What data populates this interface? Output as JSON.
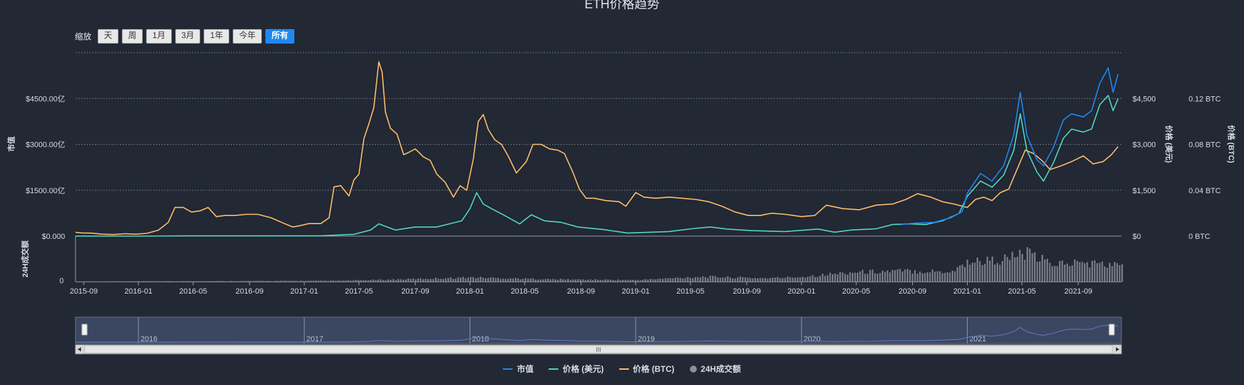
{
  "title": "ETH价格趋势",
  "zoom": {
    "label": "缩放",
    "buttons": [
      "天",
      "周",
      "1月",
      "3月",
      "1年",
      "今年",
      "所有"
    ],
    "active": "所有"
  },
  "legend": [
    {
      "name": "市值",
      "color": "#1e88f0",
      "kind": "line"
    },
    {
      "name": "价格 (美元)",
      "color": "#4fd8c4",
      "kind": "line"
    },
    {
      "name": "价格 (BTC)",
      "color": "#ffbe6a",
      "kind": "line"
    },
    {
      "name": "24H成交额",
      "color": "#8a8f98",
      "kind": "dot"
    }
  ],
  "navigator": {
    "years": [
      "2016",
      "2017",
      "2018",
      "2019",
      "2020",
      "2021"
    ],
    "scroll_label": "III"
  },
  "chart_data": {
    "type": "line",
    "title": "ETH价格趋势",
    "x_range": [
      2015.62,
      2021.93
    ],
    "x_tick_labels": [
      "2015-09",
      "2016-01",
      "2016-05",
      "2016-09",
      "2017-01",
      "2017-05",
      "2017-09",
      "2018-01",
      "2018-05",
      "2018-09",
      "2019-01",
      "2019-05",
      "2019-09",
      "2020-01",
      "2020-05",
      "2020-09",
      "2021-01",
      "2021-05",
      "2021-09"
    ],
    "x_tick_values": [
      2015.67,
      2016.0,
      2016.33,
      2016.67,
      2017.0,
      2017.33,
      2017.67,
      2018.0,
      2018.33,
      2018.67,
      2019.0,
      2019.33,
      2019.67,
      2020.0,
      2020.33,
      2020.67,
      2021.0,
      2021.33,
      2021.67
    ],
    "axes": {
      "market_cap": {
        "label": "市值",
        "ylim": [
          0,
          6000
        ],
        "ticks": [
          0,
          1500,
          3000,
          4500
        ],
        "tick_labels": [
          "$0.000",
          "$1500.00亿",
          "$3000.00亿",
          "$4500.00亿"
        ]
      },
      "price_usd": {
        "label": "价格 (美元)",
        "ylim": [
          0,
          6000
        ],
        "ticks": [
          0,
          1500,
          3000,
          4500
        ],
        "tick_labels": [
          "$0",
          "$1,500",
          "$3,000",
          "$4,500"
        ]
      },
      "price_btc": {
        "label": "价格 (BTC)",
        "ylim": [
          0,
          0.16
        ],
        "ticks": [
          0,
          0.04,
          0.08,
          0.12
        ],
        "tick_labels": [
          "0 BTC",
          "0.04 BTC",
          "0.08 BTC",
          "0.12 BTC"
        ]
      },
      "volume": {
        "label": "24H成交额",
        "ticks": [
          0
        ],
        "tick_labels": [
          "0",
          "$0.000"
        ],
        "ymax": 100
      }
    },
    "series": [
      {
        "name": "价格 (BTC)",
        "axis": "price_btc",
        "color": "#ffbe6a",
        "points": [
          [
            2015.62,
            0.0033
          ],
          [
            2015.66,
            0.0028
          ],
          [
            2015.72,
            0.0026
          ],
          [
            2015.78,
            0.0017
          ],
          [
            2015.85,
            0.0014
          ],
          [
            2015.92,
            0.0021
          ],
          [
            2015.98,
            0.0017
          ],
          [
            2016.05,
            0.0024
          ],
          [
            2016.12,
            0.0052
          ],
          [
            2016.18,
            0.012
          ],
          [
            2016.22,
            0.025
          ],
          [
            2016.27,
            0.025
          ],
          [
            2016.32,
            0.021
          ],
          [
            2016.37,
            0.022
          ],
          [
            2016.42,
            0.025
          ],
          [
            2016.47,
            0.017
          ],
          [
            2016.52,
            0.018
          ],
          [
            2016.58,
            0.018
          ],
          [
            2016.65,
            0.019
          ],
          [
            2016.72,
            0.019
          ],
          [
            2016.8,
            0.016
          ],
          [
            2016.88,
            0.011
          ],
          [
            2016.93,
            0.008
          ],
          [
            2016.97,
            0.009
          ],
          [
            2017.03,
            0.011
          ],
          [
            2017.1,
            0.011
          ],
          [
            2017.15,
            0.016
          ],
          [
            2017.18,
            0.043
          ],
          [
            2017.22,
            0.044
          ],
          [
            2017.27,
            0.035
          ],
          [
            2017.3,
            0.049
          ],
          [
            2017.33,
            0.054
          ],
          [
            2017.36,
            0.085
          ],
          [
            2017.39,
            0.098
          ],
          [
            2017.42,
            0.112
          ],
          [
            2017.45,
            0.152
          ],
          [
            2017.47,
            0.143
          ],
          [
            2017.49,
            0.108
          ],
          [
            2017.52,
            0.094
          ],
          [
            2017.56,
            0.089
          ],
          [
            2017.6,
            0.071
          ],
          [
            2017.63,
            0.073
          ],
          [
            2017.67,
            0.076
          ],
          [
            2017.72,
            0.069
          ],
          [
            2017.76,
            0.066
          ],
          [
            2017.8,
            0.054
          ],
          [
            2017.85,
            0.047
          ],
          [
            2017.9,
            0.034
          ],
          [
            2017.94,
            0.044
          ],
          [
            2017.98,
            0.04
          ],
          [
            2018.02,
            0.067
          ],
          [
            2018.05,
            0.1
          ],
          [
            2018.08,
            0.106
          ],
          [
            2018.11,
            0.093
          ],
          [
            2018.15,
            0.084
          ],
          [
            2018.19,
            0.08
          ],
          [
            2018.23,
            0.07
          ],
          [
            2018.28,
            0.055
          ],
          [
            2018.34,
            0.065
          ],
          [
            2018.38,
            0.08
          ],
          [
            2018.43,
            0.08
          ],
          [
            2018.48,
            0.076
          ],
          [
            2018.53,
            0.075
          ],
          [
            2018.57,
            0.072
          ],
          [
            2018.62,
            0.056
          ],
          [
            2018.66,
            0.041
          ],
          [
            2018.7,
            0.033
          ],
          [
            2018.75,
            0.033
          ],
          [
            2018.82,
            0.031
          ],
          [
            2018.9,
            0.03
          ],
          [
            2018.94,
            0.026
          ],
          [
            2019.0,
            0.038
          ],
          [
            2019.05,
            0.034
          ],
          [
            2019.12,
            0.033
          ],
          [
            2019.2,
            0.034
          ],
          [
            2019.28,
            0.033
          ],
          [
            2019.36,
            0.032
          ],
          [
            2019.44,
            0.03
          ],
          [
            2019.52,
            0.026
          ],
          [
            2019.6,
            0.021
          ],
          [
            2019.68,
            0.018
          ],
          [
            2019.75,
            0.018
          ],
          [
            2019.82,
            0.02
          ],
          [
            2019.9,
            0.019
          ],
          [
            2020.0,
            0.017
          ],
          [
            2020.08,
            0.018
          ],
          [
            2020.15,
            0.027
          ],
          [
            2020.25,
            0.024
          ],
          [
            2020.35,
            0.023
          ],
          [
            2020.45,
            0.027
          ],
          [
            2020.55,
            0.028
          ],
          [
            2020.63,
            0.032
          ],
          [
            2020.7,
            0.037
          ],
          [
            2020.78,
            0.034
          ],
          [
            2020.85,
            0.03
          ],
          [
            2020.92,
            0.028
          ],
          [
            2021.0,
            0.025
          ],
          [
            2021.05,
            0.032
          ],
          [
            2021.1,
            0.034
          ],
          [
            2021.15,
            0.031
          ],
          [
            2021.2,
            0.038
          ],
          [
            2021.25,
            0.041
          ],
          [
            2021.3,
            0.058
          ],
          [
            2021.35,
            0.075
          ],
          [
            2021.4,
            0.072
          ],
          [
            2021.45,
            0.066
          ],
          [
            2021.5,
            0.058
          ],
          [
            2021.58,
            0.062
          ],
          [
            2021.63,
            0.065
          ],
          [
            2021.7,
            0.07
          ],
          [
            2021.76,
            0.063
          ],
          [
            2021.82,
            0.065
          ],
          [
            2021.87,
            0.071
          ],
          [
            2021.91,
            0.078
          ]
        ]
      },
      {
        "name": "价格 (美元)",
        "axis": "price_usd",
        "color": "#4fd8c4",
        "points": [
          [
            2015.62,
            2
          ],
          [
            2016.0,
            1
          ],
          [
            2016.3,
            11
          ],
          [
            2016.6,
            12
          ],
          [
            2016.9,
            8
          ],
          [
            2017.1,
            12
          ],
          [
            2017.3,
            60
          ],
          [
            2017.4,
            200
          ],
          [
            2017.45,
            400
          ],
          [
            2017.55,
            200
          ],
          [
            2017.67,
            300
          ],
          [
            2017.8,
            300
          ],
          [
            2017.95,
            500
          ],
          [
            2018.0,
            900
          ],
          [
            2018.04,
            1420
          ],
          [
            2018.08,
            1050
          ],
          [
            2018.13,
            900
          ],
          [
            2018.2,
            700
          ],
          [
            2018.3,
            400
          ],
          [
            2018.37,
            700
          ],
          [
            2018.45,
            500
          ],
          [
            2018.55,
            450
          ],
          [
            2018.65,
            300
          ],
          [
            2018.8,
            220
          ],
          [
            2018.95,
            100
          ],
          [
            2019.05,
            120
          ],
          [
            2019.2,
            150
          ],
          [
            2019.35,
            250
          ],
          [
            2019.45,
            300
          ],
          [
            2019.55,
            230
          ],
          [
            2019.7,
            180
          ],
          [
            2019.9,
            150
          ],
          [
            2020.1,
            230
          ],
          [
            2020.2,
            130
          ],
          [
            2020.3,
            200
          ],
          [
            2020.45,
            240
          ],
          [
            2020.55,
            380
          ],
          [
            2020.65,
            400
          ],
          [
            2020.75,
            380
          ],
          [
            2020.85,
            500
          ],
          [
            2020.95,
            740
          ],
          [
            2021.0,
            1300
          ],
          [
            2021.08,
            1800
          ],
          [
            2021.15,
            1600
          ],
          [
            2021.22,
            2000
          ],
          [
            2021.28,
            2800
          ],
          [
            2021.32,
            4000
          ],
          [
            2021.36,
            2800
          ],
          [
            2021.42,
            2100
          ],
          [
            2021.46,
            1800
          ],
          [
            2021.52,
            2400
          ],
          [
            2021.58,
            3200
          ],
          [
            2021.63,
            3500
          ],
          [
            2021.7,
            3400
          ],
          [
            2021.75,
            3500
          ],
          [
            2021.8,
            4300
          ],
          [
            2021.85,
            4600
          ],
          [
            2021.88,
            4100
          ],
          [
            2021.91,
            4500
          ]
        ]
      },
      {
        "name": "市值",
        "axis": "market_cap",
        "color": "#1e88f0",
        "points": [
          [
            2020.6,
            380
          ],
          [
            2020.7,
            430
          ],
          [
            2020.8,
            450
          ],
          [
            2020.9,
            600
          ],
          [
            2020.97,
            800
          ],
          [
            2021.0,
            1400
          ],
          [
            2021.08,
            2050
          ],
          [
            2021.15,
            1800
          ],
          [
            2021.22,
            2300
          ],
          [
            2021.28,
            3300
          ],
          [
            2021.32,
            4700
          ],
          [
            2021.36,
            3300
          ],
          [
            2021.42,
            2500
          ],
          [
            2021.46,
            2300
          ],
          [
            2021.52,
            2900
          ],
          [
            2021.58,
            3800
          ],
          [
            2021.63,
            4000
          ],
          [
            2021.7,
            3900
          ],
          [
            2021.75,
            4100
          ],
          [
            2021.8,
            5000
          ],
          [
            2021.85,
            5500
          ],
          [
            2021.88,
            4700
          ],
          [
            2021.91,
            5300
          ]
        ]
      }
    ],
    "volume_series": {
      "name": "24H成交额",
      "color": "#8a8f98",
      "points": [
        [
          2015.62,
          1
        ],
        [
          2016.5,
          2
        ],
        [
          2017.2,
          3
        ],
        [
          2017.5,
          6
        ],
        [
          2018.0,
          12
        ],
        [
          2018.5,
          7
        ],
        [
          2019.0,
          5
        ],
        [
          2019.4,
          14
        ],
        [
          2019.8,
          10
        ],
        [
          2020.0,
          14
        ],
        [
          2020.3,
          26
        ],
        [
          2020.6,
          30
        ],
        [
          2020.9,
          28
        ],
        [
          2021.0,
          55
        ],
        [
          2021.2,
          60
        ],
        [
          2021.35,
          78
        ],
        [
          2021.5,
          50
        ],
        [
          2021.7,
          52
        ],
        [
          2021.91,
          45
        ]
      ]
    }
  }
}
